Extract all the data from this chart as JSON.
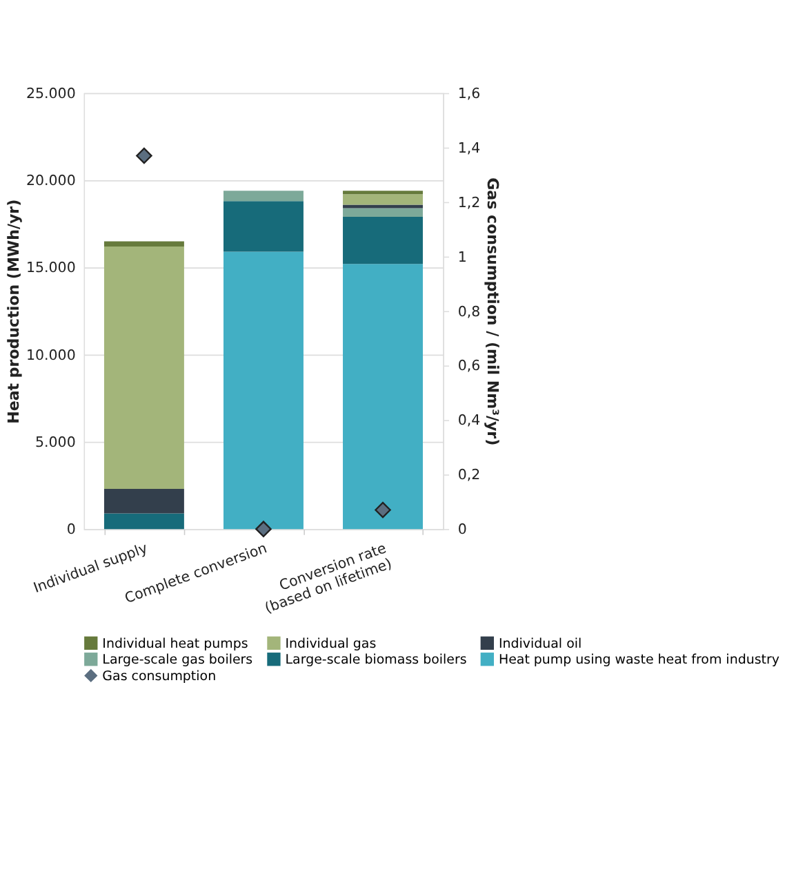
{
  "chart_data": {
    "type": "bar",
    "stacked": true,
    "categories": [
      "Individual supply",
      "Complete conversion",
      "Conversion rate\n(based on lifetime)"
    ],
    "ylabel": "Heat production (MWh/yr)",
    "y2label": "Gas consumption / (mil Nm³/yr)",
    "ylim": [
      0,
      25000
    ],
    "yticks": [
      {
        "value": 0,
        "label": "0"
      },
      {
        "value": 5000,
        "label": "5.000"
      },
      {
        "value": 10000,
        "label": "10.000"
      },
      {
        "value": 15000,
        "label": "15.000"
      },
      {
        "value": 20000,
        "label": "20.000"
      },
      {
        "value": 25000,
        "label": "25.000"
      }
    ],
    "y2lim": [
      0,
      1.6
    ],
    "y2ticks": [
      {
        "value": 0,
        "label": "0"
      },
      {
        "value": 0.2,
        "label": "0,2"
      },
      {
        "value": 0.4,
        "label": "0,4"
      },
      {
        "value": 0.6,
        "label": "0,6"
      },
      {
        "value": 0.8,
        "label": "0,8"
      },
      {
        "value": 1,
        "label": "1"
      },
      {
        "value": 1.2,
        "label": "1,2"
      },
      {
        "value": 1.4,
        "label": "1,4"
      },
      {
        "value": 1.6,
        "label": "1,6"
      }
    ],
    "grid": "y",
    "legend": "bottom",
    "series": [
      {
        "name": "Heat pump using waste heat from industry",
        "color": "#42afc4",
        "values": [
          null,
          15900,
          15200
        ]
      },
      {
        "name": "Large-scale biomass boilers",
        "color": "#176b7a",
        "values": [
          900,
          2900,
          2700
        ]
      },
      {
        "name": "Large-scale gas boilers",
        "color": "#7da999",
        "values": [
          null,
          600,
          500
        ]
      },
      {
        "name": "Individual oil",
        "color": "#333f4c",
        "values": [
          1400,
          null,
          200
        ]
      },
      {
        "name": "Individual gas",
        "color": "#a3b57a",
        "values": [
          13900,
          null,
          600
        ]
      },
      {
        "name": "Individual heat pumps",
        "color": "#667a3c",
        "values": [
          300,
          null,
          200
        ]
      },
      {
        "name": "Gas consumption",
        "color": "#5b6e80",
        "type": "scatter",
        "axis": "y2",
        "marker": "diamond",
        "values": [
          1.37,
          0.0,
          0.07
        ]
      }
    ]
  }
}
